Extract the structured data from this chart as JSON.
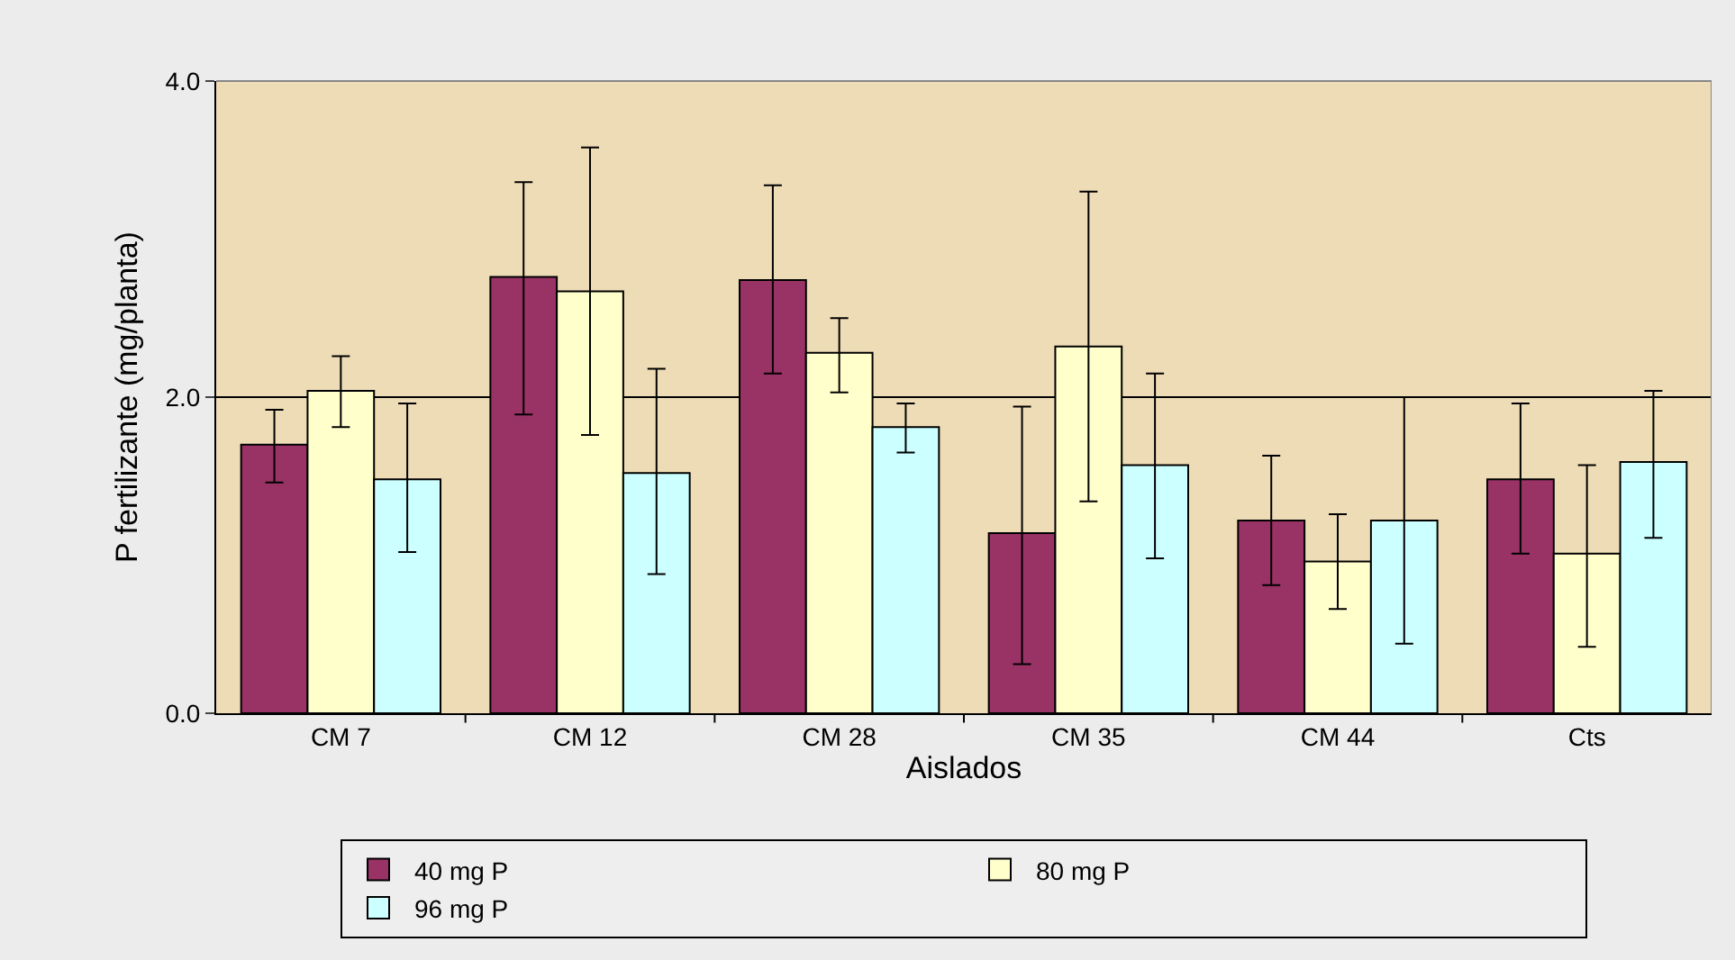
{
  "chart_data": {
    "type": "bar",
    "xlabel": "Aislados",
    "ylabel": "P fertilizante (mg/planta)",
    "categories": [
      "CM 7",
      "CM 12",
      "CM 28",
      "CM 35",
      "CM 44",
      "Cts"
    ],
    "series": [
      {
        "name": "40 mg P",
        "color": "#993366",
        "values": [
          1.7,
          2.76,
          2.74,
          1.14,
          1.22,
          1.48
        ],
        "errors": [
          [
            1.46,
            1.92
          ],
          [
            1.89,
            3.36
          ],
          [
            2.15,
            3.34
          ],
          [
            0.31,
            1.94
          ],
          [
            0.81,
            1.63
          ],
          [
            1.01,
            1.96
          ]
        ]
      },
      {
        "name": "80 mg P",
        "color": "#ffffcc",
        "values": [
          2.04,
          2.67,
          2.28,
          2.32,
          0.96,
          1.01
        ],
        "errors": [
          [
            1.81,
            2.26
          ],
          [
            1.76,
            3.58
          ],
          [
            2.03,
            2.5
          ],
          [
            1.34,
            3.3
          ],
          [
            0.66,
            1.26
          ],
          [
            0.42,
            1.57
          ]
        ]
      },
      {
        "name": "96 mg P",
        "color": "#ccffff",
        "values": [
          1.48,
          1.52,
          1.81,
          1.57,
          1.22,
          1.59
        ],
        "errors": [
          [
            1.02,
            1.96
          ],
          [
            0.88,
            2.18
          ],
          [
            1.65,
            1.96
          ],
          [
            0.98,
            2.15
          ],
          [
            0.44,
            2.0
          ],
          [
            1.11,
            2.04
          ]
        ]
      }
    ],
    "ylim": [
      0,
      4
    ],
    "yticks": [
      {
        "value": 0,
        "label": "0.0"
      },
      {
        "value": 2,
        "label": "2.0"
      },
      {
        "value": 4,
        "label": "4.0"
      }
    ],
    "grid": "y",
    "legend": "bottom"
  }
}
